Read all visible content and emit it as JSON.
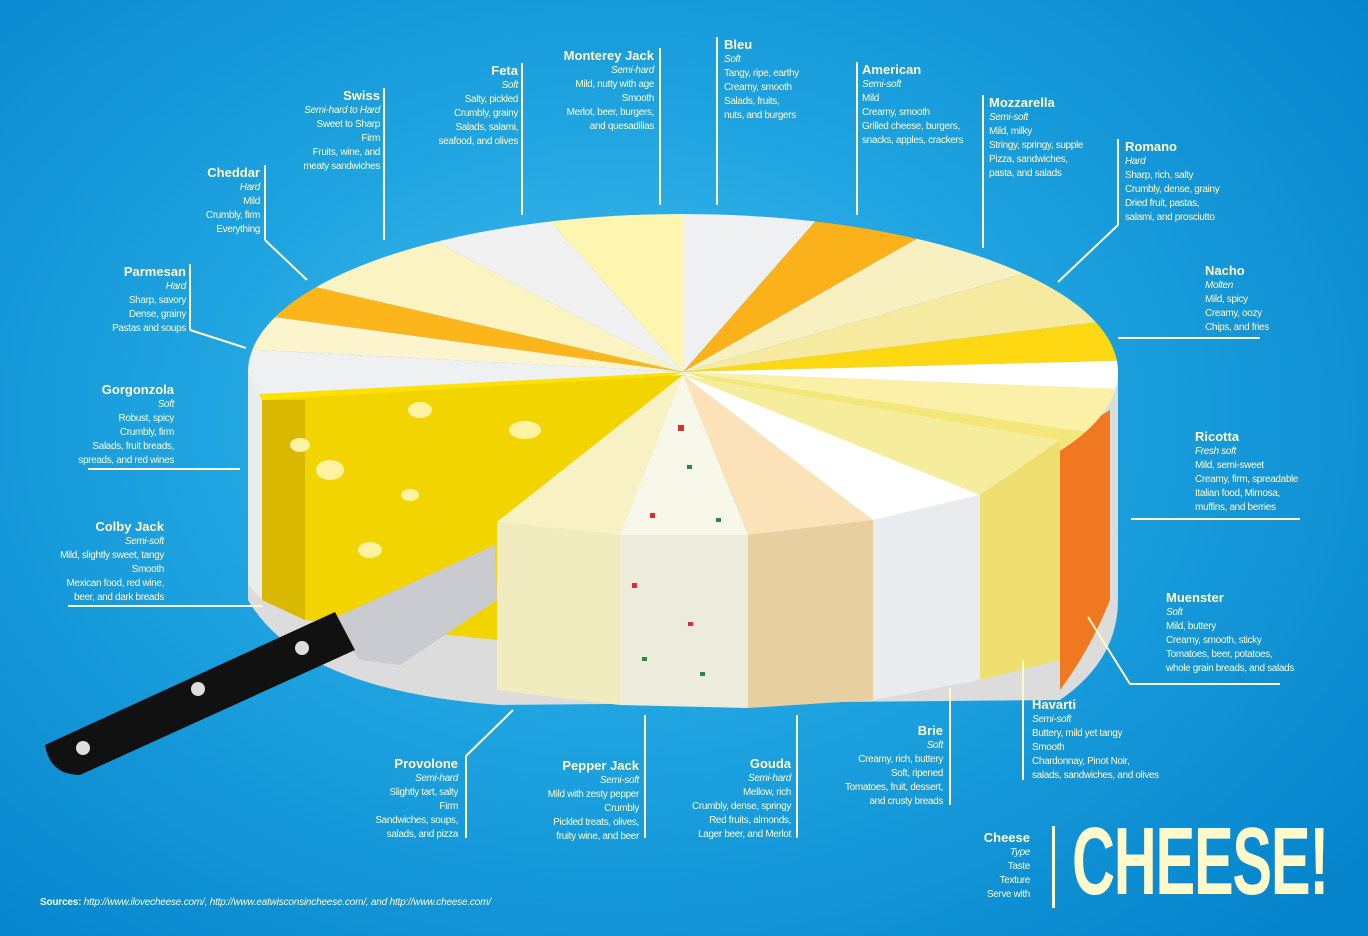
{
  "colors": {
    "background": "#1ea3e0",
    "text": "#fff9cc",
    "knife_handle": "#111111",
    "blade": "#c9cbd0"
  },
  "title": "CHEESE!",
  "legend": {
    "name": "Cheese",
    "type": "Type",
    "taste": "Taste",
    "texture": "Texture",
    "serve": "Serve with"
  },
  "sources": {
    "label": "Sources:",
    "text": "http://www.ilovecheese.com/, http://www.eatwisconsincheese.com/, and http://www.cheese.com/"
  },
  "cheeses": [
    {
      "name": "Swiss",
      "type": "Semi-hard to Hard",
      "lines": [
        "Sweet to Sharp",
        "Firm",
        "Fruits, wine, and",
        "meaty sandwiches"
      ]
    },
    {
      "name": "Feta",
      "type": "Soft",
      "lines": [
        "Salty, pickled",
        "Crumbly, grainy",
        "Salads, salami,",
        "seafood, and olives"
      ]
    },
    {
      "name": "Monterey Jack",
      "type": "Semi-hard",
      "lines": [
        "Mild, nutty with age",
        "Smooth",
        "Merlot, beer, burgers,",
        "and quesadillas"
      ]
    },
    {
      "name": "Cheddar",
      "type": "Hard",
      "lines": [
        "Mild",
        "Crumbly, firm",
        "Everything"
      ]
    },
    {
      "name": "Parmesan",
      "type": "Hard",
      "lines": [
        "Sharp, savory",
        "Dense, grainy",
        "Pastas and soups"
      ]
    },
    {
      "name": "Gorgonzola",
      "type": "Soft",
      "lines": [
        "Robust, spicy",
        "Crumbly, firm",
        "Salads, fruit breads,",
        "spreads, and red wines"
      ]
    },
    {
      "name": "Colby Jack",
      "type": "Semi-soft",
      "lines": [
        "Mild, slightly sweet, tangy",
        "Smooth",
        "Mexican food, red wine,",
        "beer, and dark breads"
      ]
    },
    {
      "name": "Provolone",
      "type": "Semi-hard",
      "lines": [
        "Slightly tart, salty",
        "Firm",
        "Sandwiches, soups,",
        "salads, and pizza"
      ]
    },
    {
      "name": "Pepper Jack",
      "type": "Semi-soft",
      "lines": [
        "Mild with zesty pepper",
        "Crumbly",
        "Pickled treats, olives,",
        "fruity wine, and beer"
      ]
    },
    {
      "name": "Gouda",
      "type": "Semi-hard",
      "lines": [
        "Mellow, rich",
        "Crumbly, dense, springy",
        "Red fruits, almonds,",
        "Lager beer, and Merlot"
      ]
    },
    {
      "name": "Brie",
      "type": "Soft",
      "lines": [
        "Creamy, rich, buttery",
        "Soft, ripened",
        "Tomatoes, fruit, dessert,",
        "and crusty breads"
      ]
    },
    {
      "name": "Bleu",
      "type": "Soft",
      "lines": [
        "Tangy, ripe, earthy",
        "Creamy, smooth",
        "Salads, fruits,",
        "nuts, and burgers"
      ]
    },
    {
      "name": "American",
      "type": "Semi-soft",
      "lines": [
        "Mild",
        "Creamy, smooth",
        "Grilled cheese, burgers,",
        "snacks, apples, crackers"
      ]
    },
    {
      "name": "Mozzarella",
      "type": "Semi-soft",
      "lines": [
        "Mild, milky",
        "Stringy, springy, supple",
        "Pizza, sandwiches,",
        "pasta, and salads"
      ]
    },
    {
      "name": "Romano",
      "type": "Hard",
      "lines": [
        "Sharp, rich, salty",
        "Crumbly, dense, grainy",
        "Dried fruit, pastas,",
        "salami, and prosciutto"
      ]
    },
    {
      "name": "Nacho",
      "type": "Molten",
      "lines": [
        "Mild, spicy",
        "Creamy, oozy",
        "Chips, and fries"
      ]
    },
    {
      "name": "Ricotta",
      "type": "Fresh soft",
      "lines": [
        "Mild, semi-sweet",
        "Creamy, firm, spreadable",
        "Italian food, Mimosa,",
        "muffins, and berries"
      ]
    },
    {
      "name": "Muenster",
      "type": "Soft",
      "lines": [
        "Mild, buttery",
        "Creamy, smooth, sticky",
        "Tomatoes, beer, potatoes,",
        "whole grain breads, and salads"
      ]
    },
    {
      "name": "Havarti",
      "type": "Semi-soft",
      "lines": [
        "Buttery, mild yet tangy",
        "Smooth",
        "Chardonnay, Pinot Noir,",
        "salads, sandwiches, and olives"
      ]
    }
  ]
}
